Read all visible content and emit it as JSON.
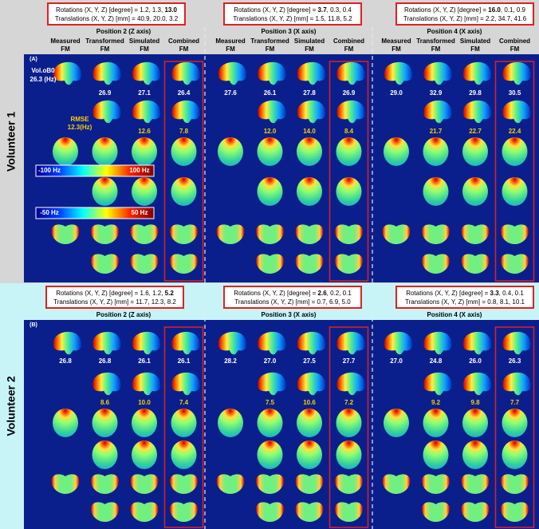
{
  "panels": [
    {
      "label": "(A)",
      "volunteer": "Volunteer 1",
      "column_headers": [
        [
          "Measured",
          "FM"
        ],
        [
          "Transformed",
          "FM"
        ],
        [
          "Simulated",
          "FM"
        ],
        [
          "Combined",
          "FM"
        ]
      ],
      "colorbars": [
        {
          "min": "-100 Hz",
          "max": "100 Hz"
        },
        {
          "min": "-50 Hz",
          "max": "50 Hz"
        }
      ],
      "positions": [
        {
          "rotations": [
            {
              "text": "Rotations (X, Y, Z) [degree] = 1.2, 1.3, ",
              "bold": false
            },
            {
              "text": "13.0",
              "bold": true
            }
          ],
          "translations": "Translations (X, Y, Z) [mm] = 40.9, 20.0, 3.2",
          "title": "Position 2 (Z axis)",
          "vol_label": "Vol.oB0",
          "rmse_label": "RMSE",
          "vol_b0": [
            "26.3 (Hz)",
            "26.9",
            "27.1",
            "26.4"
          ],
          "rmse": [
            "12.3(Hz)",
            "12.6",
            "7.8"
          ]
        },
        {
          "rotations": [
            {
              "text": "Rotations (X, Y, Z) [degree] = ",
              "bold": false
            },
            {
              "text": "3.7",
              "bold": true
            },
            {
              "text": ", 0.3, 0.4",
              "bold": false
            }
          ],
          "translations": "Translations (X, Y, Z) [mm] = 1.5, 11.8, 5.2",
          "title": "Position 3 (X axis)",
          "vol_b0": [
            "27.6",
            "26.1",
            "27.8",
            "26.9"
          ],
          "rmse": [
            "12.0",
            "14.0",
            "8.4"
          ]
        },
        {
          "rotations": [
            {
              "text": "Rotations (X, Y, Z) [degree] = ",
              "bold": false
            },
            {
              "text": "16.0",
              "bold": true
            },
            {
              "text": ", 0.1, 0.9",
              "bold": false
            }
          ],
          "translations": "Translations (X, Y, Z) [mm] = 2.2, 34.7, 41.6",
          "title": "Position 4 (X axis)",
          "vol_b0": [
            "29.0",
            "32.9",
            "29.8",
            "30.5"
          ],
          "rmse": [
            "21.7",
            "22.7",
            "22.4"
          ]
        }
      ]
    },
    {
      "label": "(B)",
      "volunteer": "Volunteer 2",
      "positions": [
        {
          "rotations": [
            {
              "text": "Rotations (X, Y, Z) [degree] = 1.6, 1.2, ",
              "bold": false
            },
            {
              "text": "5.2",
              "bold": true
            }
          ],
          "translations": "Translations (X, Y, Z) [mm] = 11.7, 12.3, 8.2",
          "title": "Position 2 (Z axis)",
          "vol_b0": [
            "26.8",
            "26.8",
            "26.1",
            "26.1"
          ],
          "rmse": [
            "8.6",
            "10.0",
            "7.4"
          ]
        },
        {
          "rotations": [
            {
              "text": "Rotations (X, Y, Z) [degree] = ",
              "bold": false
            },
            {
              "text": "2.6",
              "bold": true
            },
            {
              "text": ", 0.2, 0.1",
              "bold": false
            }
          ],
          "translations": "Translations (X, Y, Z) [mm] = 0.7, 6.9, 5.0",
          "title": "Position 3 (X axis)",
          "vol_b0": [
            "28.2",
            "27.0",
            "27.5",
            "27.7"
          ],
          "rmse": [
            "7.5",
            "10.6",
            "7.2"
          ]
        },
        {
          "rotations": [
            {
              "text": "Rotations (X, Y, Z) [degree] = ",
              "bold": false
            },
            {
              "text": "3.3",
              "bold": true
            },
            {
              "text": ", 0.4, 0.1",
              "bold": false
            }
          ],
          "translations": "Translations (X, Y, Z) [mm] = 0.8, 8.1, 10.1",
          "title": "Position 4 (X axis)",
          "vol_b0": [
            "27.0",
            "24.8",
            "26.0",
            "26.3"
          ],
          "rmse": [
            "9.2",
            "9.8",
            "7.7"
          ]
        }
      ]
    }
  ]
}
